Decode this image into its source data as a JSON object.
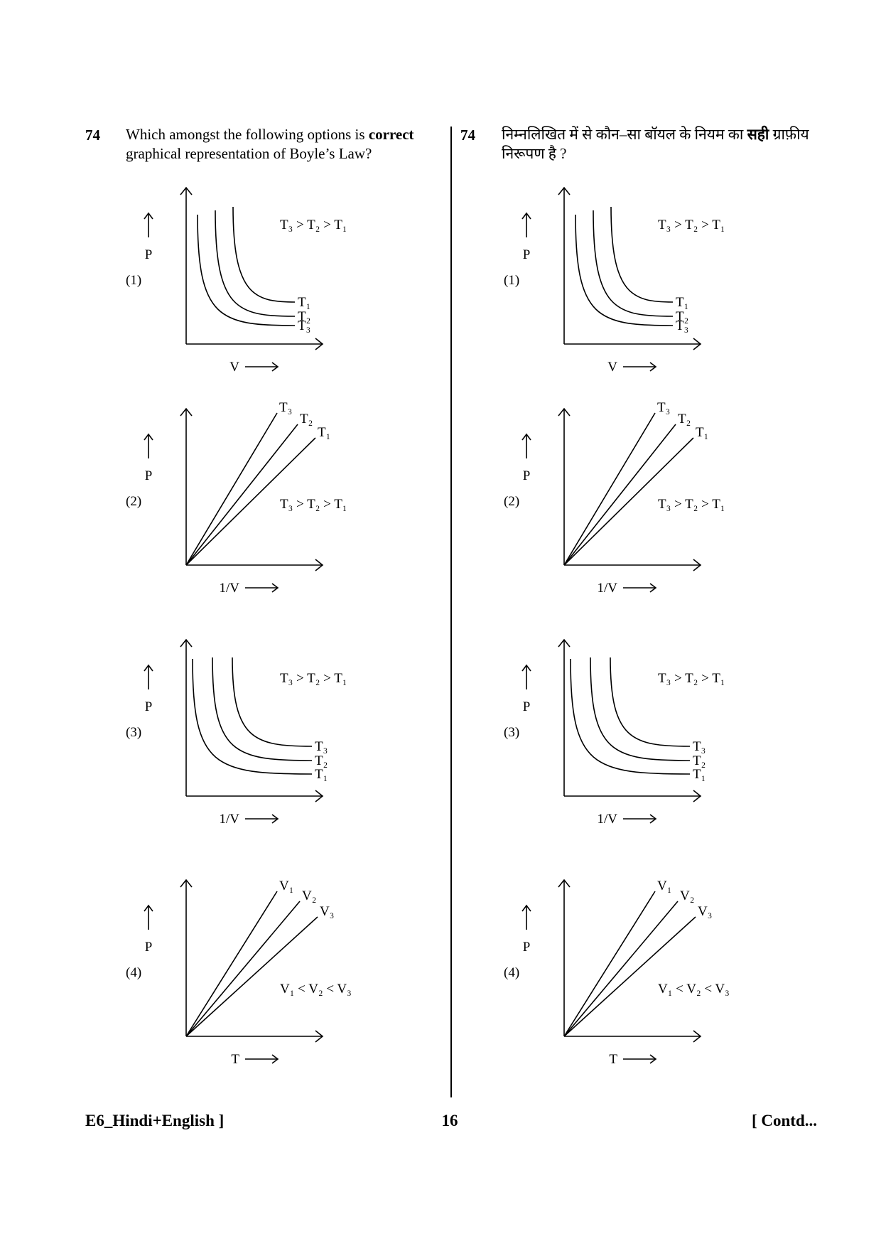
{
  "question": {
    "number": "74",
    "text_en": [
      "Which amongst the following options is ",
      "correct",
      " graphical representation of Boyle’s Law?"
    ],
    "text_hi": [
      "निम्नलिखित में से कौन–सा बॉयल के नियम का ",
      "सही",
      " ग्राफ़ीय निरूपण है ?"
    ]
  },
  "options": [
    {
      "label": "(1)",
      "y_axis": "P",
      "x_axis": "V",
      "condition": "T₃ > T₂ > T₁",
      "curve_labels": [
        "T₁",
        "T₂",
        "T₃"
      ]
    },
    {
      "label": "(2)",
      "y_axis": "P",
      "x_axis": "1/V",
      "condition": "T₃ > T₂ > T₁",
      "curve_labels": [
        "T₃",
        "T₂",
        "T₁"
      ]
    },
    {
      "label": "(3)",
      "y_axis": "P",
      "x_axis": "1/V",
      "condition": "T₃ > T₂ > T₁",
      "curve_labels": [
        "T₃",
        "T₂",
        "T₁"
      ]
    },
    {
      "label": "(4)",
      "y_axis": "P",
      "x_axis": "T",
      "condition": "V₁ < V₂ < V₃",
      "curve_labels": [
        "V₁",
        "V₂",
        "V₃"
      ]
    }
  ],
  "footer": {
    "left": "E6_Hindi+English ]",
    "center": "16",
    "right": "[ Contd..."
  }
}
